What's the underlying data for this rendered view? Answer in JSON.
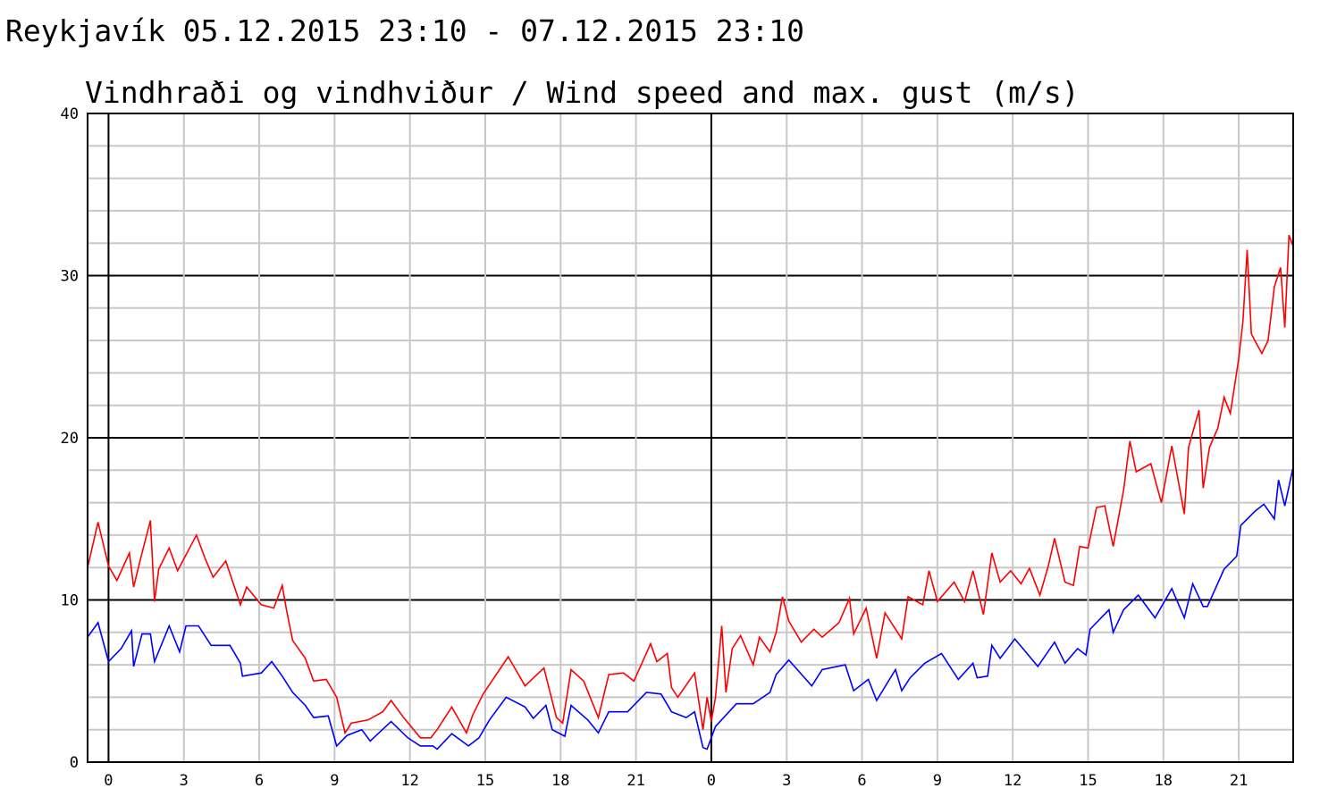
{
  "header": {
    "title": "Reykjavík 05.12.2015 23:10 - 07.12.2015 23:10"
  },
  "chart_data": {
    "type": "line",
    "title": "Vindhraði og vindhviður / Wind speed and max. gust (m/s)",
    "xlabel": "",
    "ylabel": "",
    "x_range": [
      "05.12 23:10",
      "07.12 23:10"
    ],
    "ylim": [
      0,
      40
    ],
    "y_ticks": [
      0,
      10,
      20,
      30,
      40
    ],
    "x_ticks": [
      {
        "time": "06.12 00:00",
        "label": "0"
      },
      {
        "time": "06.12 03:00",
        "label": "3"
      },
      {
        "time": "06.12 06:00",
        "label": "6"
      },
      {
        "time": "06.12 09:00",
        "label": "9"
      },
      {
        "time": "06.12 12:00",
        "label": "12"
      },
      {
        "time": "06.12 15:00",
        "label": "15"
      },
      {
        "time": "06.12 18:00",
        "label": "18"
      },
      {
        "time": "06.12 21:00",
        "label": "21"
      },
      {
        "time": "07.12 00:00",
        "label": "0"
      },
      {
        "time": "07.12 03:00",
        "label": "3"
      },
      {
        "time": "07.12 06:00",
        "label": "6"
      },
      {
        "time": "07.12 09:00",
        "label": "9"
      },
      {
        "time": "07.12 12:00",
        "label": "12"
      },
      {
        "time": "07.12 15:00",
        "label": "15"
      },
      {
        "time": "07.12 18:00",
        "label": "18"
      },
      {
        "time": "07.12 21:00",
        "label": "21"
      }
    ],
    "grid": true,
    "series": [
      {
        "color": "#ff0000",
        "points": [
          [
            "05.12 23:10",
            12.0
          ],
          [
            "05.12 23:35",
            14.8
          ],
          [
            "06.12 00:00",
            12.1
          ],
          [
            "06.12 00:20",
            11.2
          ],
          [
            "06.12 00:50",
            12.9
          ],
          [
            "06.12 01:00",
            10.8
          ],
          [
            "06.12 01:20",
            12.9
          ],
          [
            "06.12 01:40",
            14.9
          ],
          [
            "06.12 01:50",
            9.9
          ],
          [
            "06.12 02:00",
            11.9
          ],
          [
            "06.12 02:25",
            13.2
          ],
          [
            "06.12 02:45",
            11.8
          ],
          [
            "06.12 03:30",
            14.0
          ],
          [
            "06.12 03:50",
            12.6
          ],
          [
            "06.12 04:10",
            11.4
          ],
          [
            "06.12 04:40",
            12.4
          ],
          [
            "06.12 05:15",
            9.7
          ],
          [
            "06.12 05:30",
            10.8
          ],
          [
            "06.12 06:05",
            9.7
          ],
          [
            "06.12 06:35",
            9.5
          ],
          [
            "06.12 06:55",
            10.9
          ],
          [
            "06.12 07:05",
            9.4
          ],
          [
            "06.12 07:20",
            7.5
          ],
          [
            "06.12 07:50",
            6.4
          ],
          [
            "06.12 08:10",
            5.0
          ],
          [
            "06.12 08:40",
            5.1
          ],
          [
            "06.12 09:05",
            4.0
          ],
          [
            "06.12 09:25",
            1.8
          ],
          [
            "06.12 09:40",
            2.4
          ],
          [
            "06.12 10:20",
            2.6
          ],
          [
            "06.12 10:55",
            3.1
          ],
          [
            "06.12 11:15",
            3.8
          ],
          [
            "06.12 11:45",
            2.75
          ],
          [
            "06.12 12:25",
            1.5
          ],
          [
            "06.12 12:50",
            1.5
          ],
          [
            "06.12 13:05",
            2.0
          ],
          [
            "06.12 13:40",
            3.4
          ],
          [
            "06.12 14:15",
            1.8
          ],
          [
            "06.12 14:30",
            2.9
          ],
          [
            "06.12 14:55",
            4.2
          ],
          [
            "06.12 15:55",
            6.5
          ],
          [
            "06.12 16:35",
            4.7
          ],
          [
            "06.12 17:20",
            5.8
          ],
          [
            "06.12 17:50",
            2.75
          ],
          [
            "06.12 18:05",
            2.4
          ],
          [
            "06.12 18:25",
            5.7
          ],
          [
            "06.12 18:55",
            5.0
          ],
          [
            "06.12 19:30",
            2.75
          ],
          [
            "06.12 19:55",
            5.4
          ],
          [
            "06.12 20:30",
            5.5
          ],
          [
            "06.12 20:55",
            5.0
          ],
          [
            "06.12 21:35",
            7.3
          ],
          [
            "06.12 21:50",
            6.2
          ],
          [
            "06.12 22:15",
            6.7
          ],
          [
            "06.12 22:25",
            4.6
          ],
          [
            "06.12 22:40",
            4.0
          ],
          [
            "06.12 23:20",
            5.5
          ],
          [
            "06.12 23:40",
            2.0
          ],
          [
            "06.12 23:50",
            4.0
          ],
          [
            "07.12 00:00",
            2.5
          ],
          [
            "07.12 00:10",
            4.0
          ],
          [
            "07.12 00:25",
            8.4
          ],
          [
            "07.12 00:35",
            4.3
          ],
          [
            "07.12 00:50",
            7.0
          ],
          [
            "07.12 01:10",
            7.8
          ],
          [
            "07.12 01:40",
            6.0
          ],
          [
            "07.12 01:55",
            7.7
          ],
          [
            "07.12 02:20",
            6.8
          ],
          [
            "07.12 02:35",
            8.0
          ],
          [
            "07.12 02:50",
            10.2
          ],
          [
            "07.12 03:05",
            8.7
          ],
          [
            "07.12 03:35",
            7.4
          ],
          [
            "07.12 04:05",
            8.2
          ],
          [
            "07.12 04:25",
            7.7
          ],
          [
            "07.12 05:05",
            8.6
          ],
          [
            "07.12 05:30",
            10.1
          ],
          [
            "07.12 05:40",
            7.9
          ],
          [
            "07.12 06:10",
            9.5
          ],
          [
            "07.12 06:35",
            6.4
          ],
          [
            "07.12 06:55",
            9.2
          ],
          [
            "07.12 07:35",
            7.6
          ],
          [
            "07.12 07:50",
            10.2
          ],
          [
            "07.12 08:25",
            9.7
          ],
          [
            "07.12 08:40",
            11.8
          ],
          [
            "07.12 09:00",
            9.9
          ],
          [
            "07.12 09:40",
            11.1
          ],
          [
            "07.12 10:05",
            9.9
          ],
          [
            "07.12 10:25",
            11.8
          ],
          [
            "07.12 10:50",
            9.1
          ],
          [
            "07.12 11:10",
            12.9
          ],
          [
            "07.12 11:30",
            11.1
          ],
          [
            "07.12 11:55",
            11.8
          ],
          [
            "07.12 12:20",
            11.0
          ],
          [
            "07.12 12:40",
            11.95
          ],
          [
            "07.12 13:05",
            10.3
          ],
          [
            "07.12 13:25",
            12.1
          ],
          [
            "07.12 13:40",
            13.8
          ],
          [
            "07.12 14:05",
            11.1
          ],
          [
            "07.12 14:25",
            10.9
          ],
          [
            "07.12 14:40",
            13.3
          ],
          [
            "07.12 15:00",
            13.2
          ],
          [
            "07.12 15:20",
            15.7
          ],
          [
            "07.12 15:40",
            15.8
          ],
          [
            "07.12 16:00",
            13.3
          ],
          [
            "07.12 16:25",
            16.8
          ],
          [
            "07.12 16:40",
            19.8
          ],
          [
            "07.12 16:55",
            17.9
          ],
          [
            "07.12 17:30",
            18.4
          ],
          [
            "07.12 17:55",
            16.0
          ],
          [
            "07.12 18:20",
            19.5
          ],
          [
            "07.12 18:50",
            15.3
          ],
          [
            "07.12 19:00",
            19.4
          ],
          [
            "07.12 19:25",
            21.7
          ],
          [
            "07.12 19:35",
            16.9
          ],
          [
            "07.12 19:50",
            19.4
          ],
          [
            "07.12 20:10",
            20.6
          ],
          [
            "07.12 20:25",
            22.5
          ],
          [
            "07.12 20:40",
            21.5
          ],
          [
            "07.12 21:00",
            24.9
          ],
          [
            "07.12 21:10",
            27.2
          ],
          [
            "07.12 21:20",
            31.6
          ],
          [
            "07.12 21:30",
            26.4
          ],
          [
            "07.12 21:55",
            25.2
          ],
          [
            "07.12 22:10",
            26.0
          ],
          [
            "07.12 22:25",
            29.3
          ],
          [
            "07.12 22:40",
            30.5
          ],
          [
            "07.12 22:50",
            26.8
          ],
          [
            "07.12 23:00",
            32.5
          ],
          [
            "07.12 23:10",
            31.8
          ]
        ]
      },
      {
        "color": "#0000ff",
        "points": [
          [
            "05.12 23:10",
            7.7
          ],
          [
            "05.12 23:35",
            8.6
          ],
          [
            "06.12 00:00",
            6.2
          ],
          [
            "06.12 00:30",
            7.0
          ],
          [
            "06.12 00:55",
            8.1
          ],
          [
            "06.12 01:00",
            5.9
          ],
          [
            "06.12 01:20",
            7.9
          ],
          [
            "06.12 01:40",
            7.9
          ],
          [
            "06.12 01:50",
            6.2
          ],
          [
            "06.12 02:25",
            8.4
          ],
          [
            "06.12 02:50",
            6.8
          ],
          [
            "06.12 03:05",
            8.4
          ],
          [
            "06.12 03:35",
            8.4
          ],
          [
            "06.12 04:05",
            7.2
          ],
          [
            "06.12 04:50",
            7.2
          ],
          [
            "06.12 05:15",
            6.1
          ],
          [
            "06.12 05:20",
            5.3
          ],
          [
            "06.12 06:05",
            5.5
          ],
          [
            "06.12 06:30",
            6.2
          ],
          [
            "06.12 06:55",
            5.3
          ],
          [
            "06.12 07:20",
            4.3
          ],
          [
            "06.12 07:50",
            3.5
          ],
          [
            "06.12 08:10",
            2.75
          ],
          [
            "06.12 08:45",
            2.85
          ],
          [
            "06.12 09:05",
            1.0
          ],
          [
            "06.12 09:30",
            1.65
          ],
          [
            "06.12 10:05",
            2.0
          ],
          [
            "06.12 10:25",
            1.3
          ],
          [
            "06.12 11:15",
            2.5
          ],
          [
            "06.12 11:55",
            1.5
          ],
          [
            "06.12 12:25",
            1.0
          ],
          [
            "06.12 12:55",
            1.0
          ],
          [
            "06.12 13:05",
            0.8
          ],
          [
            "06.12 13:40",
            1.75
          ],
          [
            "06.12 14:20",
            1.0
          ],
          [
            "06.12 14:45",
            1.5
          ],
          [
            "06.12 15:10",
            2.6
          ],
          [
            "06.12 15:50",
            4.0
          ],
          [
            "06.12 16:35",
            3.4
          ],
          [
            "06.12 16:55",
            2.7
          ],
          [
            "06.12 17:25",
            3.5
          ],
          [
            "06.12 17:40",
            2.0
          ],
          [
            "06.12 18:10",
            1.6
          ],
          [
            "06.12 18:25",
            3.5
          ],
          [
            "06.12 19:05",
            2.6
          ],
          [
            "06.12 19:30",
            1.8
          ],
          [
            "06.12 19:55",
            3.1
          ],
          [
            "06.12 20:40",
            3.1
          ],
          [
            "06.12 21:25",
            4.3
          ],
          [
            "06.12 22:00",
            4.2
          ],
          [
            "06.12 22:25",
            3.1
          ],
          [
            "06.12 23:00",
            2.75
          ],
          [
            "06.12 23:20",
            3.1
          ],
          [
            "06.12 23:40",
            0.9
          ],
          [
            "06.12 23:50",
            0.8
          ],
          [
            "07.12 00:10",
            2.2
          ],
          [
            "07.12 01:00",
            3.6
          ],
          [
            "07.12 01:40",
            3.6
          ],
          [
            "07.12 02:20",
            4.3
          ],
          [
            "07.12 02:35",
            5.4
          ],
          [
            "07.12 03:05",
            6.3
          ],
          [
            "07.12 04:00",
            4.7
          ],
          [
            "07.12 04:25",
            5.7
          ],
          [
            "07.12 05:20",
            6.0
          ],
          [
            "07.12 05:40",
            4.4
          ],
          [
            "07.12 06:15",
            5.1
          ],
          [
            "07.12 06:35",
            3.8
          ],
          [
            "07.12 07:20",
            5.7
          ],
          [
            "07.12 07:35",
            4.4
          ],
          [
            "07.12 07:55",
            5.2
          ],
          [
            "07.12 08:30",
            6.1
          ],
          [
            "07.12 09:10",
            6.7
          ],
          [
            "07.12 09:50",
            5.1
          ],
          [
            "07.12 10:25",
            6.1
          ],
          [
            "07.12 10:35",
            5.2
          ],
          [
            "07.12 11:00",
            5.3
          ],
          [
            "07.12 11:10",
            7.2
          ],
          [
            "07.12 11:30",
            6.4
          ],
          [
            "07.12 12:05",
            7.6
          ],
          [
            "07.12 13:00",
            5.9
          ],
          [
            "07.12 13:40",
            7.4
          ],
          [
            "07.12 14:05",
            6.1
          ],
          [
            "07.12 14:35",
            7.0
          ],
          [
            "07.12 14:55",
            6.6
          ],
          [
            "07.12 15:05",
            8.2
          ],
          [
            "07.12 15:50",
            9.4
          ],
          [
            "07.12 16:00",
            8.0
          ],
          [
            "07.12 16:25",
            9.4
          ],
          [
            "07.12 17:00",
            10.3
          ],
          [
            "07.12 17:40",
            8.9
          ],
          [
            "07.12 18:20",
            10.7
          ],
          [
            "07.12 18:50",
            8.9
          ],
          [
            "07.12 19:10",
            11.0
          ],
          [
            "07.12 19:35",
            9.6
          ],
          [
            "07.12 19:45",
            9.6
          ],
          [
            "07.12 20:25",
            11.9
          ],
          [
            "07.12 20:55",
            12.7
          ],
          [
            "07.12 21:05",
            14.6
          ],
          [
            "07.12 21:40",
            15.5
          ],
          [
            "07.12 22:00",
            15.9
          ],
          [
            "07.12 22:25",
            15.0
          ],
          [
            "07.12 22:35",
            17.4
          ],
          [
            "07.12 22:50",
            15.8
          ],
          [
            "07.12 23:10",
            18.2
          ]
        ]
      }
    ]
  }
}
